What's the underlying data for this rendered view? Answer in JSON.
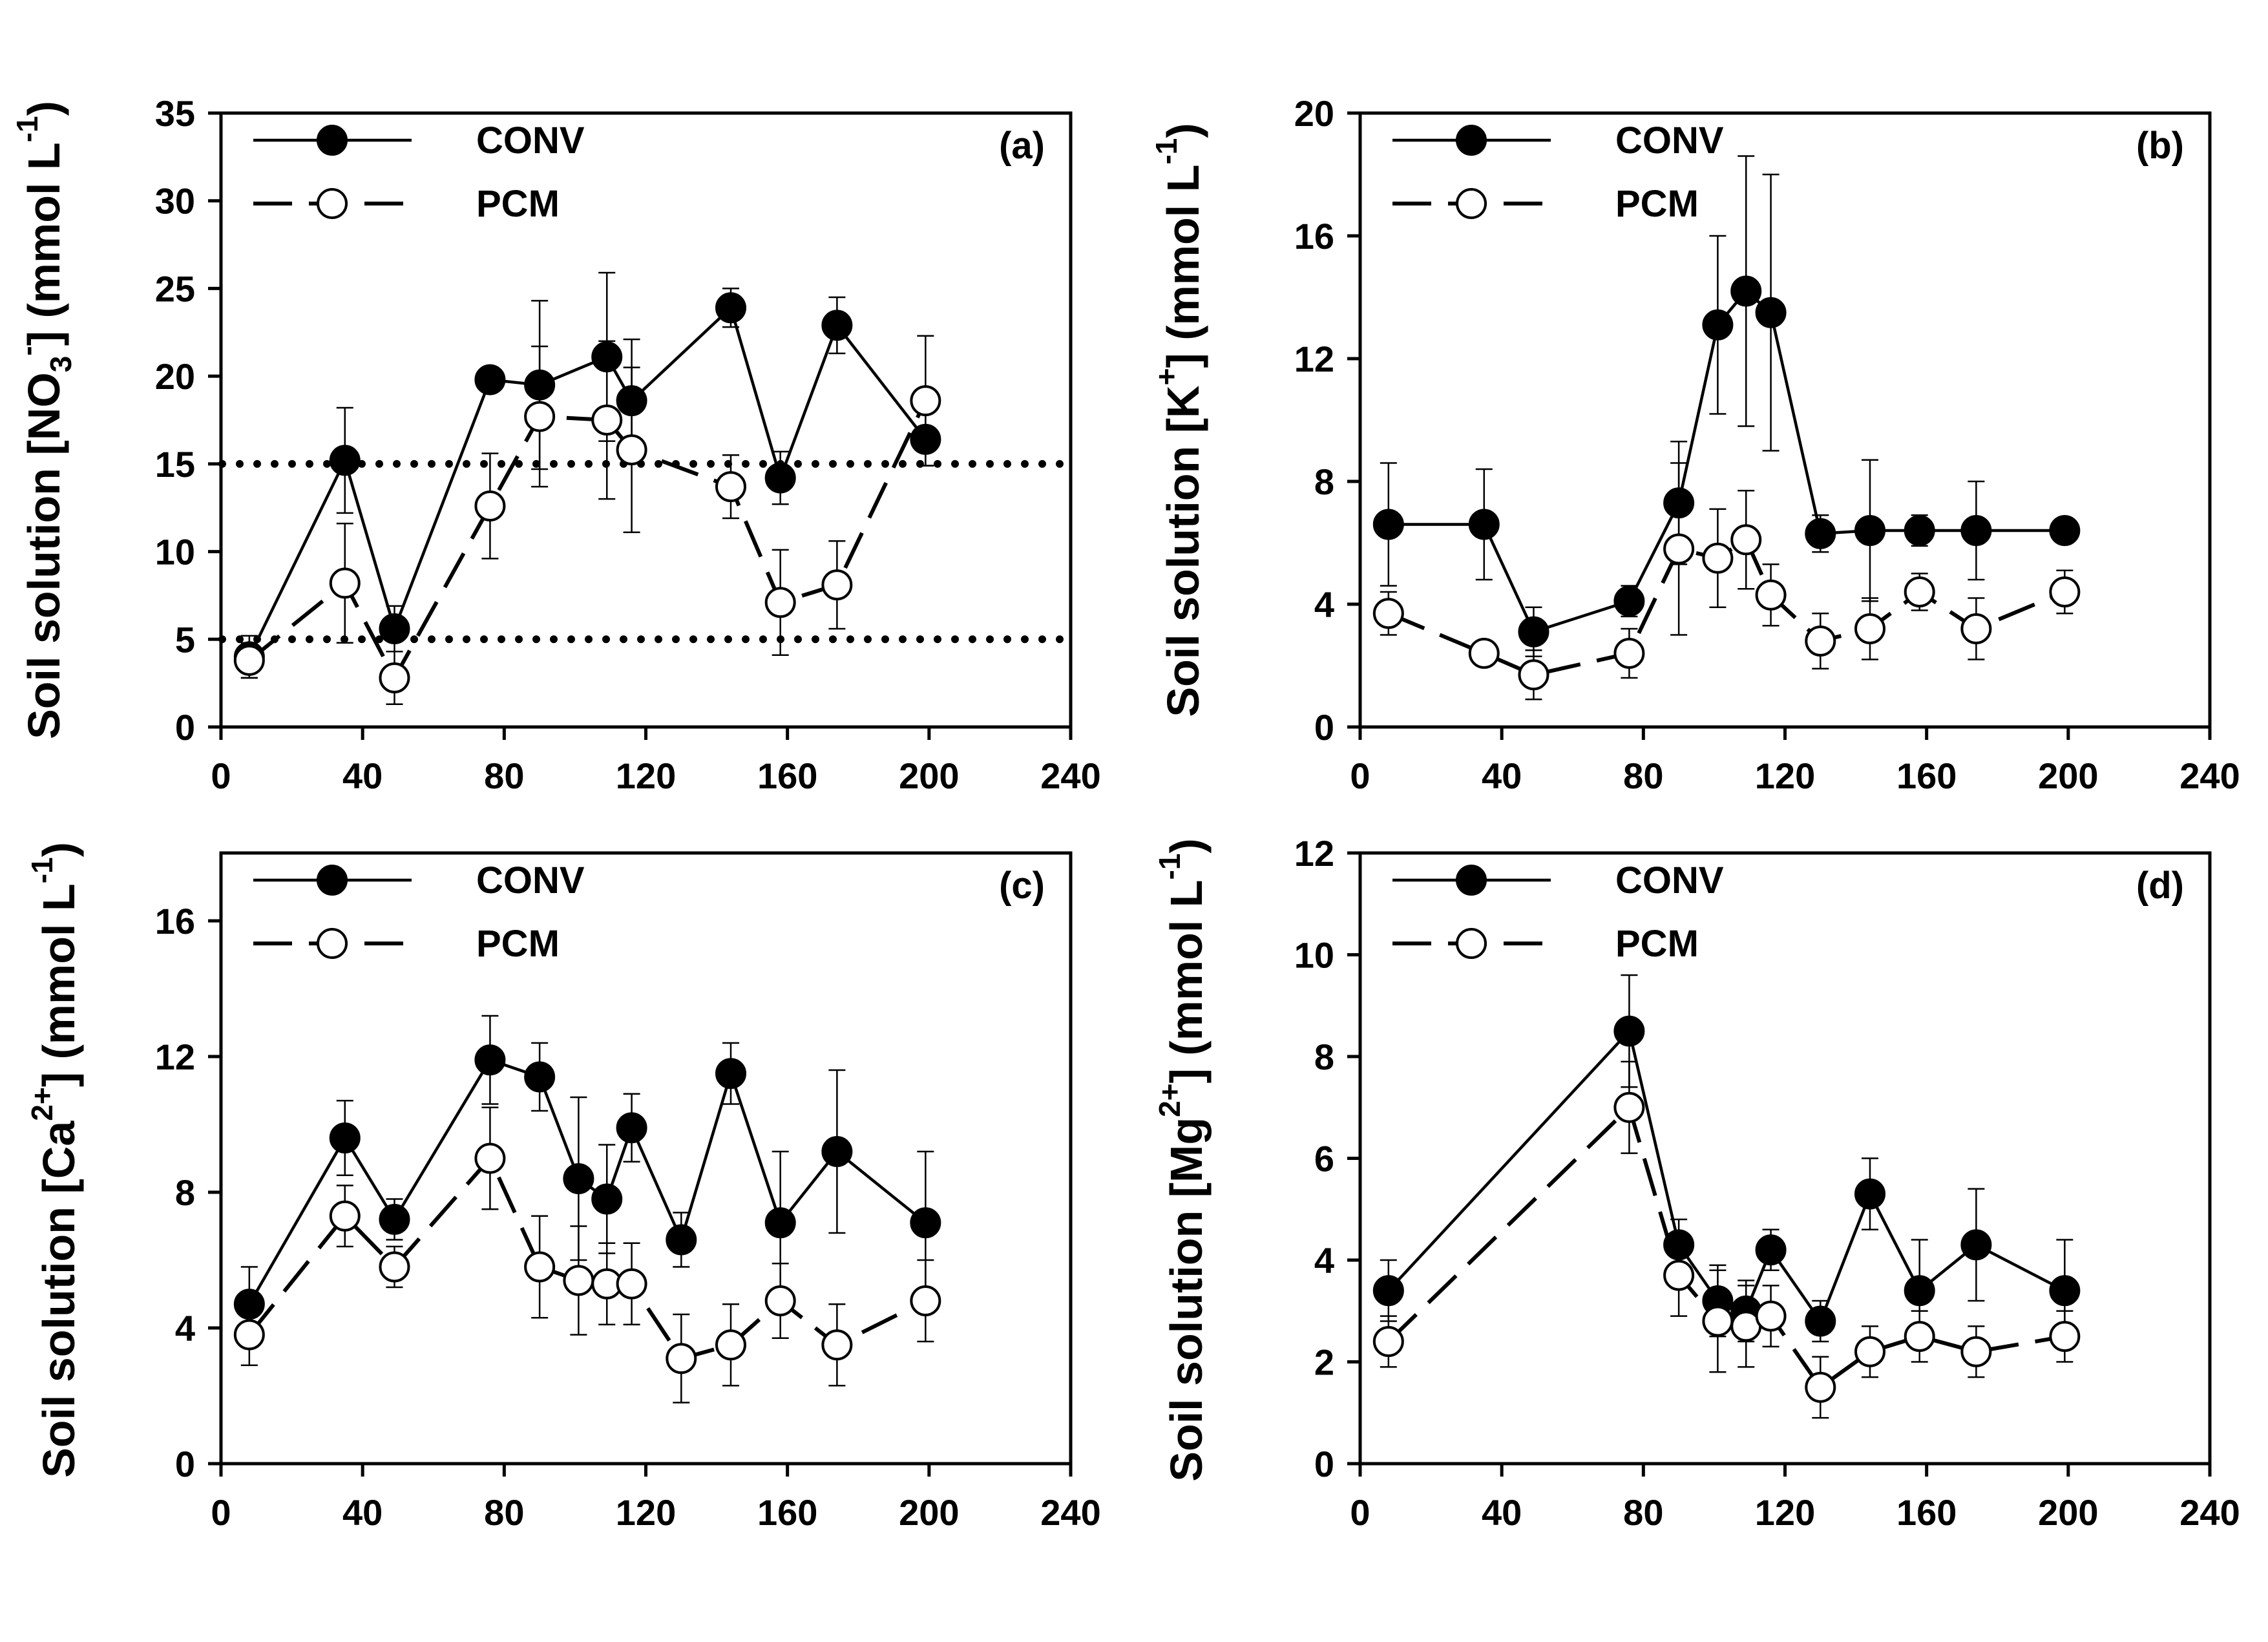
{
  "colors": {
    "axis": "#000000",
    "conv_fill": "#000000",
    "pcm_fill": "#ffffff",
    "background": "#ffffff"
  },
  "chart_data": [
    {
      "type": "line",
      "panel": "a",
      "label": "(a)",
      "legend": {
        "placement": "top-left",
        "entries": [
          "CONV",
          "PCM"
        ]
      },
      "ylabel": {
        "main": "Soil solution [NO",
        "sub": "3",
        "sup1": "-",
        "close": "] (mmol L",
        "sup2": "-1",
        "end": ")"
      },
      "xlim": [
        0,
        240
      ],
      "ylim": [
        0,
        35
      ],
      "xticks": [
        0,
        40,
        80,
        120,
        160,
        200,
        240
      ],
      "yticks": [
        0,
        5,
        10,
        15,
        20,
        25,
        30,
        35
      ],
      "reference_lines": [
        15,
        5
      ],
      "series": [
        {
          "name": "CONV",
          "marker": "filled-circle",
          "line": "solid",
          "x": [
            8,
            35,
            49,
            76,
            90,
            109,
            116,
            144,
            158,
            174,
            199
          ],
          "y": [
            4.0,
            15.2,
            5.6,
            19.8,
            19.5,
            21.1,
            18.6,
            23.9,
            14.2,
            22.9,
            16.4
          ],
          "err": [
            1.2,
            3.0,
            1.3,
            0,
            4.8,
            4.8,
            3.5,
            1.1,
            1.5,
            1.6,
            1.5
          ]
        },
        {
          "name": "PCM",
          "marker": "open-circle",
          "line": "dashed",
          "x": [
            8,
            35,
            49,
            76,
            90,
            109,
            116,
            144,
            158,
            174,
            199
          ],
          "y": [
            3.8,
            8.2,
            2.8,
            12.6,
            17.7,
            17.5,
            15.8,
            13.7,
            7.1,
            8.1,
            18.6
          ],
          "err": [
            1.0,
            3.4,
            1.5,
            3.0,
            4.0,
            4.5,
            4.7,
            1.8,
            3.0,
            2.5,
            3.7
          ]
        }
      ]
    },
    {
      "type": "line",
      "panel": "b",
      "label": "(b)",
      "legend": {
        "placement": "top-left",
        "entries": [
          "CONV",
          "PCM"
        ]
      },
      "ylabel": {
        "main": "Soil solution [K",
        "sub": "",
        "sup1": "+",
        "close": "] (mmol L",
        "sup2": "-1",
        "end": ")"
      },
      "xlim": [
        0,
        240
      ],
      "ylim": [
        0,
        20
      ],
      "xticks": [
        0,
        40,
        80,
        120,
        160,
        200,
        240
      ],
      "yticks": [
        0,
        4,
        8,
        12,
        16,
        20
      ],
      "reference_lines": [],
      "series": [
        {
          "name": "CONV",
          "marker": "filled-circle",
          "line": "solid",
          "x": [
            8,
            35,
            49,
            76,
            90,
            101,
            109,
            116,
            130,
            144,
            158,
            174,
            199
          ],
          "y": [
            6.6,
            6.6,
            3.1,
            4.1,
            7.3,
            13.1,
            14.2,
            13.5,
            6.3,
            6.4,
            6.4,
            6.4,
            6.4
          ],
          "err": [
            2.0,
            1.8,
            0.8,
            0.5,
            2.0,
            2.9,
            4.4,
            4.5,
            0.6,
            2.3,
            0.5,
            1.6,
            0.3
          ]
        },
        {
          "name": "PCM",
          "marker": "open-circle",
          "line": "dashed",
          "x": [
            8,
            35,
            49,
            76,
            90,
            101,
            109,
            116,
            130,
            144,
            158,
            174,
            199
          ],
          "y": [
            3.7,
            2.4,
            1.7,
            2.4,
            5.8,
            5.5,
            6.1,
            4.3,
            2.8,
            3.2,
            4.4,
            3.2,
            4.4
          ],
          "err": [
            0.7,
            0.3,
            0.8,
            0.8,
            2.8,
            1.6,
            1.6,
            1.0,
            0.9,
            1.0,
            0.6,
            1.0,
            0.7
          ]
        }
      ]
    },
    {
      "type": "line",
      "panel": "c",
      "label": "(c)",
      "legend": {
        "placement": "top-left",
        "entries": [
          "CONV",
          "PCM"
        ]
      },
      "ylabel": {
        "main": "Soil solution [Ca",
        "sub": "",
        "sup1": "2+",
        "close": "] (mmol L",
        "sup2": "-1",
        "end": ")"
      },
      "xlim": [
        0,
        240
      ],
      "ylim": [
        0,
        18
      ],
      "xticks": [
        0,
        40,
        80,
        120,
        160,
        200,
        240
      ],
      "yticks": [
        0,
        4,
        8,
        12,
        16
      ],
      "reference_lines": [],
      "series": [
        {
          "name": "CONV",
          "marker": "filled-circle",
          "line": "solid",
          "x": [
            8,
            35,
            49,
            76,
            90,
            101,
            109,
            116,
            130,
            144,
            158,
            174,
            199
          ],
          "y": [
            4.7,
            9.6,
            7.2,
            11.9,
            11.4,
            8.4,
            7.8,
            9.9,
            6.6,
            11.5,
            7.1,
            9.2,
            7.1
          ],
          "err": [
            1.1,
            1.1,
            0.6,
            1.3,
            1.0,
            2.4,
            1.6,
            1.0,
            0.8,
            0.9,
            2.1,
            2.4,
            2.1
          ]
        },
        {
          "name": "PCM",
          "marker": "open-circle",
          "line": "dashed",
          "x": [
            8,
            35,
            49,
            76,
            90,
            101,
            109,
            116,
            130,
            144,
            158,
            174,
            199
          ],
          "y": [
            3.8,
            7.3,
            5.8,
            9.0,
            5.8,
            5.4,
            5.3,
            5.3,
            3.1,
            3.5,
            4.8,
            3.5,
            4.8
          ],
          "err": [
            0.9,
            0.9,
            0.6,
            1.5,
            1.5,
            1.6,
            1.2,
            1.2,
            1.3,
            1.2,
            1.1,
            1.2,
            1.2
          ]
        }
      ]
    },
    {
      "type": "line",
      "panel": "d",
      "label": "(d)",
      "legend": {
        "placement": "top-left",
        "entries": [
          "CONV",
          "PCM"
        ]
      },
      "ylabel": {
        "main": "Soil solution [Mg",
        "sub": "",
        "sup1": "2+",
        "close": "] (mmol L",
        "sup2": "-1",
        "end": ")"
      },
      "xlim": [
        0,
        240
      ],
      "ylim": [
        0,
        12
      ],
      "xticks": [
        0,
        40,
        80,
        120,
        160,
        200,
        240
      ],
      "yticks": [
        0,
        2,
        4,
        6,
        8,
        10,
        12
      ],
      "reference_lines": [],
      "series": [
        {
          "name": "CONV",
          "marker": "filled-circle",
          "line": "solid",
          "x": [
            8,
            76,
            90,
            101,
            109,
            116,
            130,
            144,
            158,
            174,
            199
          ],
          "y": [
            3.4,
            8.5,
            4.3,
            3.2,
            3.0,
            4.2,
            2.8,
            5.3,
            3.4,
            4.3,
            3.4
          ],
          "err": [
            0.6,
            1.1,
            0.5,
            0.7,
            0.6,
            0.4,
            0.4,
            0.7,
            1.0,
            1.1,
            1.0
          ]
        },
        {
          "name": "PCM",
          "marker": "open-circle",
          "line": "dashed",
          "x": [
            8,
            76,
            90,
            101,
            109,
            116,
            130,
            144,
            158,
            174,
            199
          ],
          "y": [
            2.4,
            7.0,
            3.7,
            2.8,
            2.7,
            2.9,
            1.5,
            2.2,
            2.5,
            2.2,
            2.5
          ],
          "err": [
            0.5,
            0.9,
            0.8,
            1.0,
            0.8,
            0.6,
            0.6,
            0.5,
            0.5,
            0.5,
            0.5
          ]
        }
      ]
    }
  ]
}
